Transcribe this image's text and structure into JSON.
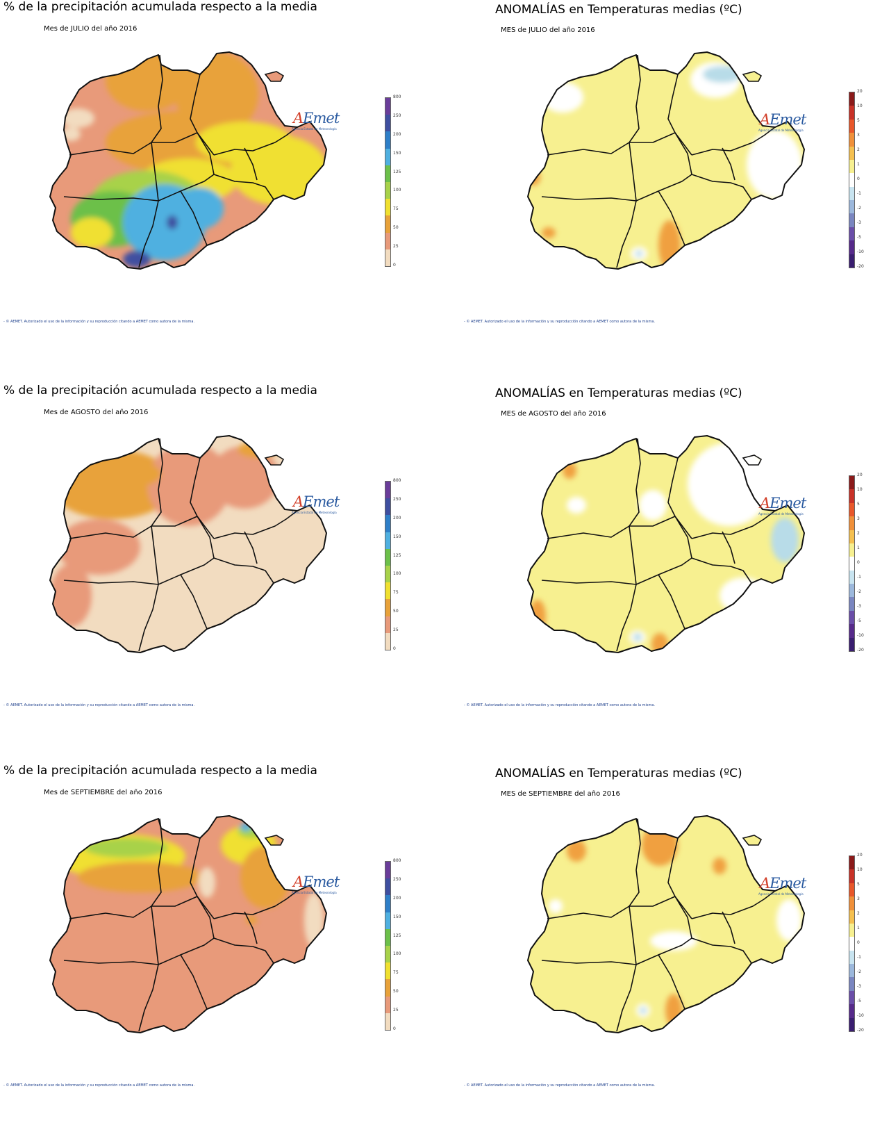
{
  "panels": [
    {
      "kind": "precip",
      "title": "% de la precipitación acumulada respecto a la media",
      "subtitle": "Mes de JULIO del año 2016",
      "credit": "- © AEMET. Autorizado el uso de la información y su reproducción citando a AEMET como autora de la misma.",
      "scheme": "precip-julio"
    },
    {
      "kind": "temp",
      "title": "ANOMALÍAS en Temperaturas medias (ºC)",
      "subtitle": "MES de JULIO del año 2016",
      "credit": "- © AEMET. Autorizado el uso de la información y su reproducción citando a AEMET como autora de la misma.",
      "scheme": "temp-julio"
    },
    {
      "kind": "precip",
      "title": "% de la precipitación acumulada respecto a la media",
      "subtitle": "Mes de AGOSTO del año 2016",
      "credit": "- © AEMET. Autorizado el uso de la información y su reproducción citando a AEMET como autora de la misma.",
      "scheme": "precip-agosto"
    },
    {
      "kind": "temp",
      "title": "ANOMALÍAS en Temperaturas medias (ºC)",
      "subtitle": "MES de AGOSTO del año 2016",
      "credit": "- © AEMET. Autorizado el uso de la información y su reproducción citando a AEMET como autora de la misma.",
      "scheme": "temp-agosto"
    },
    {
      "kind": "precip",
      "title": "% de la precipitación acumulada respecto a la media",
      "subtitle": "Mes de SEPTIEMBRE del año 2016",
      "credit": "- © AEMET. Autorizado el uso de la información y su reproducción citando a AEMET como autora de la misma.",
      "scheme": "precip-septiembre"
    },
    {
      "kind": "temp",
      "title": "ANOMALÍAS en Temperaturas medias (ºC)",
      "subtitle": "MES de SEPTIEMBRE del año 2016",
      "credit": "- © AEMET. Autorizado el uso de la información y su reproducción citando a AEMET como autora de la misma.",
      "scheme": "temp-septiembre"
    }
  ],
  "logo": {
    "name_a": "A",
    "name_rest": "Emet",
    "tagline": "Agencia Estatal de Meteorología"
  },
  "legends": {
    "precip": {
      "ticks": [
        "800",
        "250",
        "200",
        "150",
        "125",
        "100",
        "75",
        "50",
        "25",
        "0"
      ],
      "colors": [
        "#6a3d9a",
        "#3f4fa0",
        "#2e7fc8",
        "#4fb0e0",
        "#6cc04a",
        "#a8d24a",
        "#f0e030",
        "#e8a23a",
        "#e89a7a",
        "#f2dcc0"
      ]
    },
    "temp": {
      "ticks": [
        "20",
        "10",
        "5",
        "3",
        "2",
        "1",
        "0",
        "-1",
        "-2",
        "-3",
        "-5",
        "-10",
        "-20"
      ],
      "colors": [
        "#8b1a1a",
        "#c83228",
        "#e8572a",
        "#f0903a",
        "#f5c050",
        "#f7f090",
        "#ffffff",
        "#c8e4f0",
        "#9cb8dc",
        "#7a86c0",
        "#6a4ea8",
        "#562a8a",
        "#3a1e70"
      ]
    }
  },
  "palette": {
    "peach": "#e89a7a",
    "orange": "#e8a23a",
    "yellow": "#f0e030",
    "lightgreen": "#a8d24a",
    "green": "#6cc04a",
    "skyblue": "#4fb0e0",
    "navy": "#3f4fa0",
    "beige": "#f2dcc0",
    "paleyellow": "#f7f090",
    "tempOrange": "#f0a040",
    "tempBlue": "#b8dce8",
    "white": "#ffffff"
  }
}
